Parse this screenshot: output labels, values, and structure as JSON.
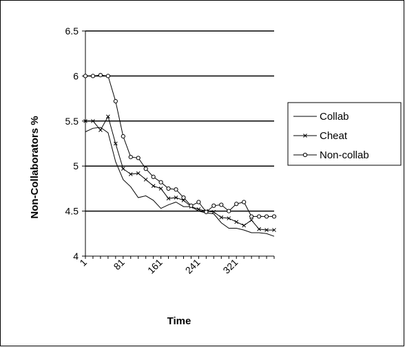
{
  "chart_data": {
    "type": "line",
    "title": "",
    "xlabel": "Time",
    "ylabel": "Non-Collaborators %",
    "ylim": [
      4,
      6.5
    ],
    "y_ticks": [
      "4",
      "4.5",
      "5",
      "5.5",
      "6",
      "6.5"
    ],
    "x_tick_labels": [
      "1",
      "81",
      "161",
      "241",
      "321"
    ],
    "x_tick_values": [
      1,
      81,
      161,
      241,
      321
    ],
    "xlim": [
      1,
      401
    ],
    "grid": "horizontal",
    "legend_position": "right",
    "x": [
      1,
      17,
      33,
      49,
      65,
      81,
      97,
      113,
      129,
      145,
      161,
      177,
      193,
      209,
      225,
      241,
      257,
      273,
      289,
      305,
      321,
      337,
      353,
      369,
      385,
      401
    ],
    "series": [
      {
        "name": "Collab",
        "marker": "none",
        "values": [
          5.38,
          5.42,
          5.43,
          5.37,
          5.05,
          4.85,
          4.77,
          4.65,
          4.67,
          4.62,
          4.53,
          4.57,
          4.6,
          4.55,
          4.55,
          4.5,
          4.48,
          4.47,
          4.37,
          4.31,
          4.31,
          4.29,
          4.26,
          4.26,
          4.25,
          4.22
        ]
      },
      {
        "name": "Cheat",
        "marker": "cross",
        "values": [
          5.5,
          5.5,
          5.4,
          5.55,
          5.25,
          4.97,
          4.91,
          4.92,
          4.85,
          4.78,
          4.75,
          4.64,
          4.65,
          4.62,
          4.55,
          4.52,
          4.5,
          4.49,
          4.43,
          4.42,
          4.38,
          4.34,
          4.4,
          4.3,
          4.29,
          4.29
        ]
      },
      {
        "name": "Non-collab",
        "marker": "circle",
        "values": [
          6.0,
          6.0,
          6.01,
          6.0,
          5.72,
          5.33,
          5.1,
          5.09,
          4.97,
          4.88,
          4.82,
          4.75,
          4.74,
          4.65,
          4.56,
          4.6,
          4.49,
          4.56,
          4.57,
          4.5,
          4.58,
          4.6,
          4.44,
          4.44,
          4.44,
          4.44
        ]
      }
    ],
    "colors": {
      "line": "#000000",
      "grid": "#000000",
      "background": "#ffffff",
      "border": "#000000"
    }
  }
}
